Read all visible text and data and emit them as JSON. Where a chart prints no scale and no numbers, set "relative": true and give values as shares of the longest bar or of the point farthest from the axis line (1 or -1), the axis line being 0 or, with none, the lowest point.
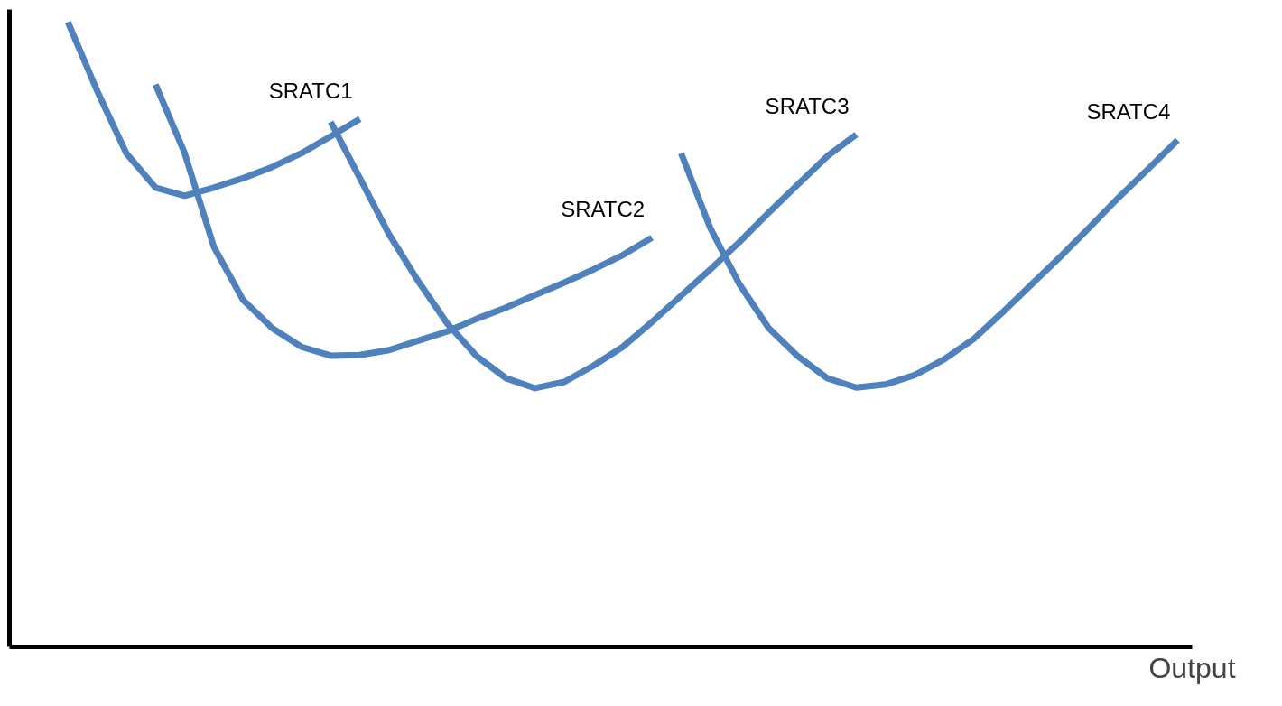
{
  "chart_data": {
    "type": "line",
    "relative": true,
    "xlabel": "Output",
    "tick_labels": false,
    "marker": "none",
    "line_style": "solid",
    "categories": [
      null,
      null,
      null,
      null,
      null,
      null,
      null,
      null,
      null,
      null,
      null,
      null,
      null,
      null,
      null,
      null,
      null,
      null,
      null,
      null,
      null,
      null,
      null,
      null,
      null,
      null,
      null,
      null,
      null,
      null,
      null,
      null,
      null,
      null,
      null,
      null,
      null,
      null,
      null
    ],
    "series": [
      {
        "name": "SRATC1",
        "color": "#4f81bd",
        "values": [
          1.0,
          0.89,
          0.79,
          0.735,
          0.722,
          0.735,
          0.75,
          0.768,
          0.79,
          0.817,
          0.845,
          null,
          null,
          null,
          null,
          null,
          null,
          null,
          null,
          null,
          null,
          null,
          null,
          null,
          null,
          null,
          null,
          null,
          null,
          null,
          null,
          null,
          null,
          null,
          null,
          null,
          null,
          null,
          null
        ]
      },
      {
        "name": "SRATC2",
        "color": "#4f81bd",
        "values": [
          null,
          null,
          null,
          0.9,
          0.79,
          0.64,
          0.555,
          0.51,
          0.48,
          0.466,
          0.467,
          0.475,
          0.49,
          0.505,
          0.525,
          0.543,
          0.563,
          0.583,
          0.604,
          0.627,
          0.655,
          null,
          null,
          null,
          null,
          null,
          null,
          null,
          null,
          null,
          null,
          null,
          null,
          null,
          null,
          null,
          null,
          null,
          null
        ]
      },
      {
        "name": "SRATC3",
        "color": "#4f81bd",
        "values": [
          null,
          null,
          null,
          null,
          null,
          null,
          null,
          null,
          null,
          0.84,
          0.75,
          0.66,
          0.585,
          0.517,
          0.465,
          0.43,
          0.414,
          0.424,
          0.45,
          0.48,
          0.52,
          0.562,
          0.604,
          0.648,
          0.695,
          0.74,
          0.785,
          0.82,
          null,
          null,
          null,
          null,
          null,
          null,
          null,
          null,
          null,
          null,
          null
        ]
      },
      {
        "name": "SRATC4",
        "color": "#4f81bd",
        "values": [
          null,
          null,
          null,
          null,
          null,
          null,
          null,
          null,
          null,
          null,
          null,
          null,
          null,
          null,
          null,
          null,
          null,
          null,
          null,
          null,
          null,
          0.79,
          0.67,
          0.58,
          0.51,
          0.465,
          0.43,
          0.415,
          0.42,
          0.435,
          0.46,
          0.492,
          0.535,
          0.58,
          0.625,
          0.672,
          0.72,
          0.765,
          0.811
        ]
      }
    ]
  }
}
